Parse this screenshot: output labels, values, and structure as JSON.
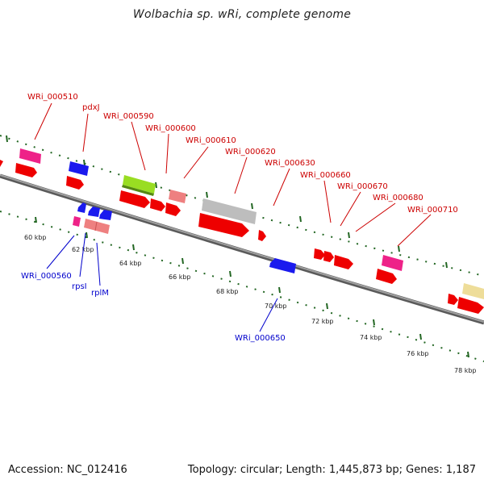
{
  "title": "Wolbachia sp. wRi, complete genome",
  "footer": {
    "accession": "Accession: NC_012416",
    "summary": "Topology: circular; Length: 1,445,873 bp; Genes: 1,187"
  },
  "scale_ticks": [
    "60 kbp",
    "62 kbp",
    "64 kbp",
    "66 kbp",
    "68 kbp",
    "70 kbp",
    "72 kbp",
    "74 kbp",
    "76 kbp",
    "78 kbp"
  ],
  "top_labels": [
    "WRi_000510",
    "pdxJ",
    "WRi_000590",
    "WRi_000600",
    "WRi_000610",
    "WRi_000620",
    "WRi_000630",
    "WRi_000660",
    "WRi_000670",
    "WRi_000680",
    "WRi_000710"
  ],
  "bottom_labels": [
    "WRi_000560",
    "rpsI",
    "rplM",
    "WRi_000650"
  ],
  "colors": {
    "forward_gene": "#ee0000",
    "reverse_gene": "#1a1aee",
    "magenta_gene": "#ee2288",
    "salmon_gene": "#ee8080",
    "green_gene": "#99dd22",
    "grey_gene": "#bdbdbd",
    "khaki_gene": "#eedd99",
    "backbone": "#808080",
    "tick_dots": "#226622",
    "top_label": "#cc0000",
    "bottom_label": "#0000cc"
  }
}
